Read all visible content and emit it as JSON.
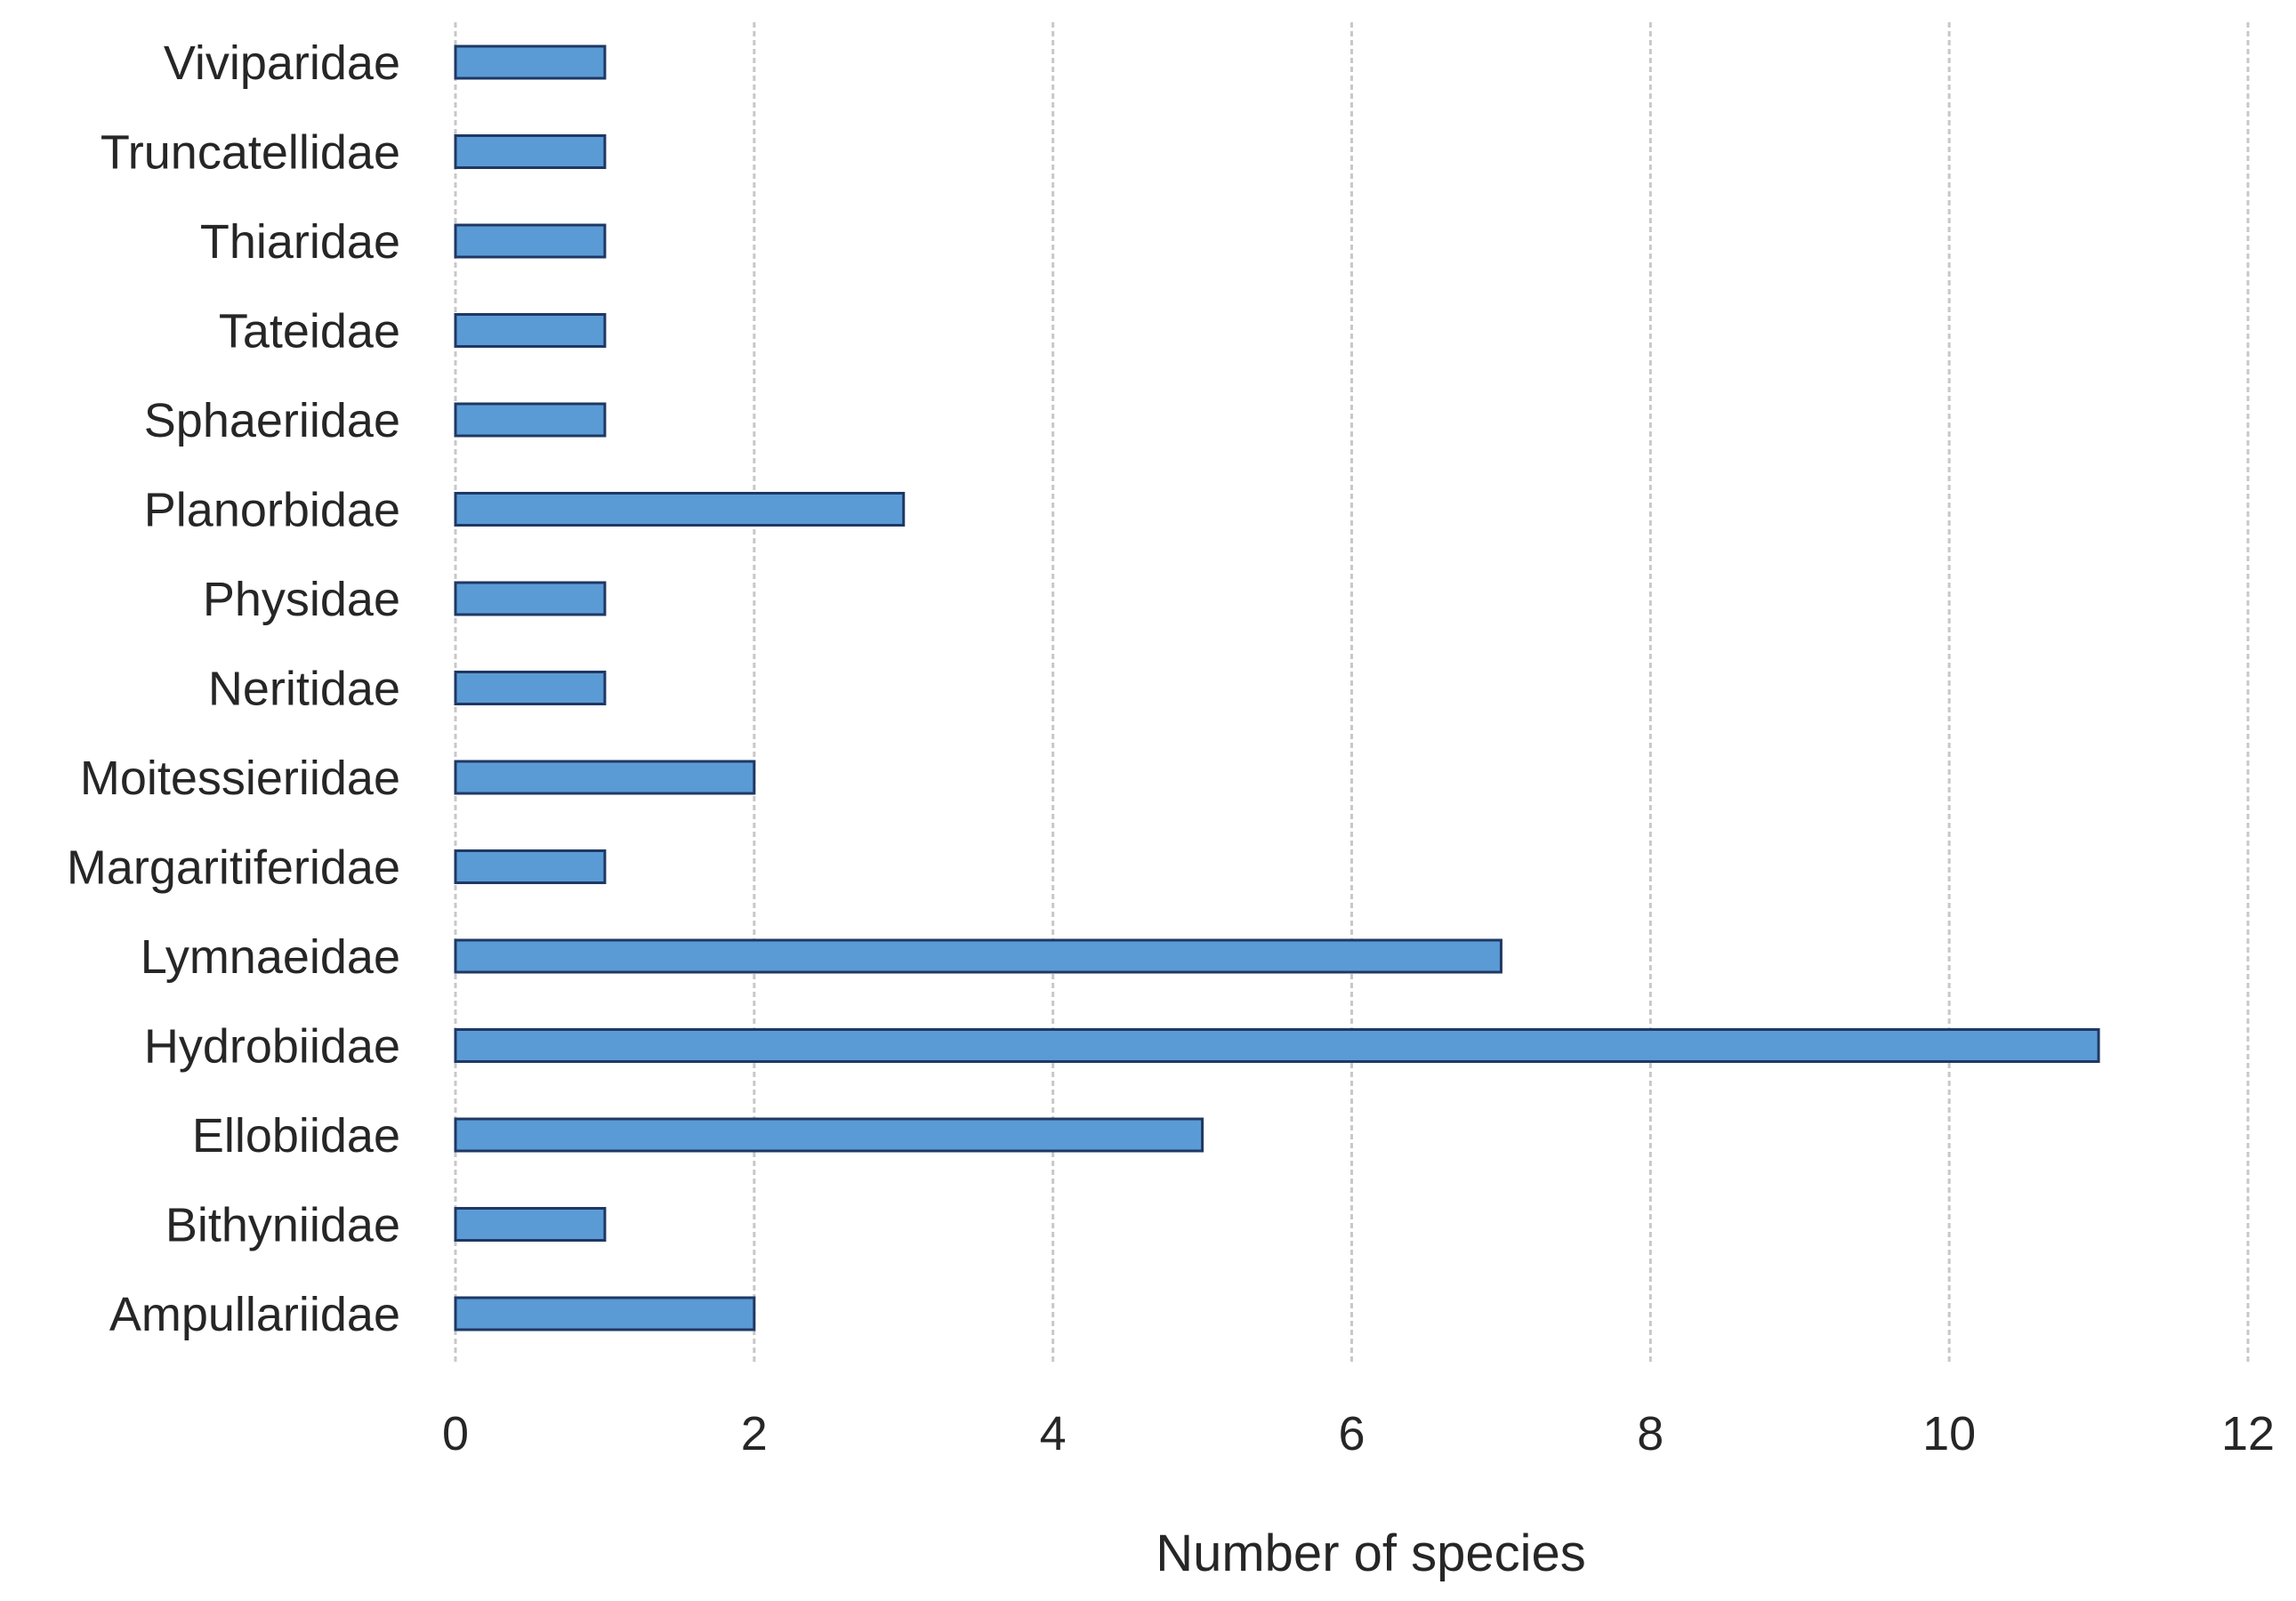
{
  "chart_data": {
    "type": "bar",
    "orientation": "horizontal",
    "title": "",
    "xlabel": "Number of species",
    "ylabel": "",
    "xlim": [
      0,
      12
    ],
    "x_ticks": [
      0,
      2,
      4,
      6,
      8,
      10,
      12
    ],
    "grid": "vertical",
    "legend": "none",
    "categories": [
      "Viviparidae",
      "Truncatellidae",
      "Thiaridae",
      "Tateidae",
      "Sphaeriidae",
      "Planorbidae",
      "Physidae",
      "Neritidae",
      "Moitessieriidae",
      "Margaritiferidae",
      "Lymnaeidae",
      "Hydrobiidae",
      "Ellobiidae",
      "Bithyniidae",
      "Ampullariidae"
    ],
    "values": [
      1,
      1,
      1,
      1,
      1,
      3,
      1,
      1,
      2,
      1,
      7,
      11,
      5,
      1,
      2
    ],
    "colors": {
      "bar_fill": "#5B9BD5",
      "bar_stroke": "#1F3864",
      "text": "#262626",
      "grid": "#C8C8C8"
    }
  }
}
